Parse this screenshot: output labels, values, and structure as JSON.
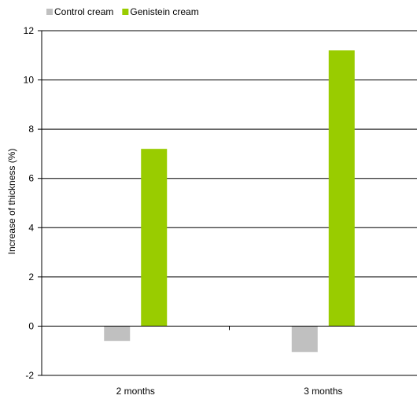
{
  "chart_data": {
    "type": "bar",
    "categories": [
      "2 months",
      "3 months"
    ],
    "series": [
      {
        "name": "Control cream",
        "values": [
          -0.6,
          -1.05
        ],
        "color": "#c0c0c0"
      },
      {
        "name": "Genistein cream",
        "values": [
          7.2,
          11.2
        ],
        "color": "#99cc00"
      }
    ],
    "title": "",
    "xlabel": "",
    "ylabel": "Increase of thickness (%)",
    "ylim": [
      -2,
      12
    ],
    "yticks": [
      -2,
      0,
      2,
      4,
      6,
      8,
      10,
      12
    ],
    "grid": true,
    "legend": "top-left"
  }
}
